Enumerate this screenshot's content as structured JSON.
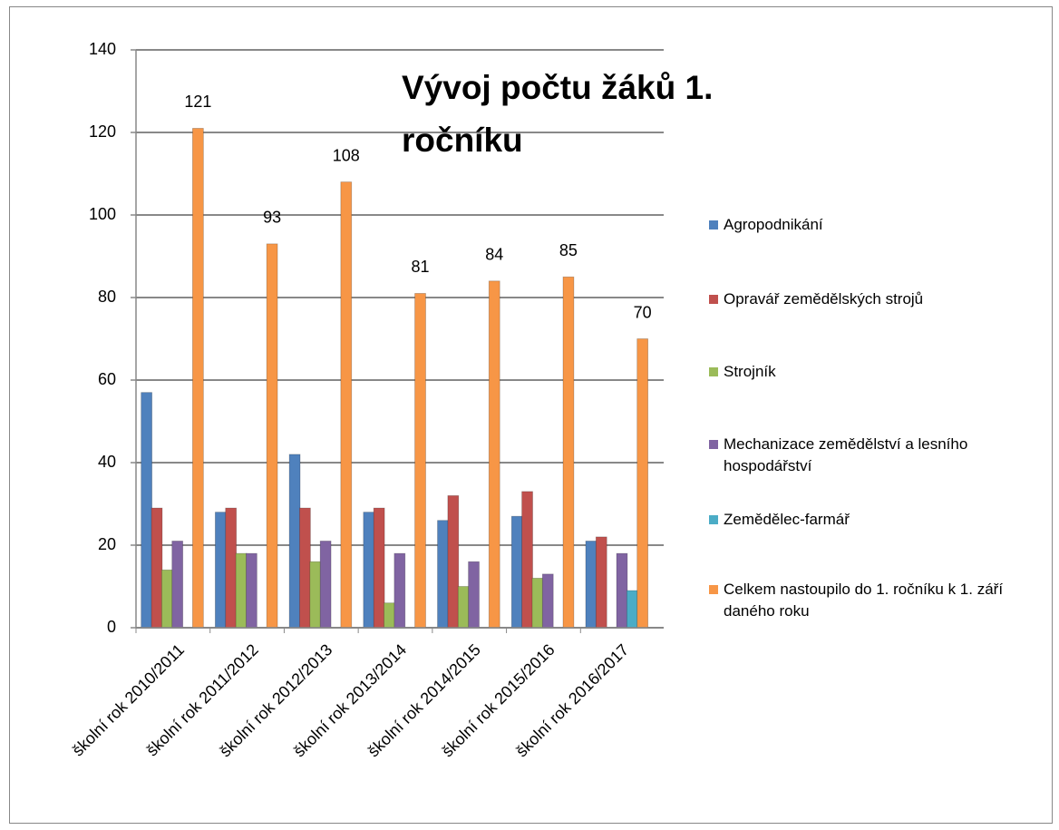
{
  "chart_data": {
    "type": "bar",
    "title": "Vývoj počtu žáků 1. ročníku",
    "categories": [
      "školní rok 2010/2011",
      "školní rok 2011/2012",
      "školní rok 2012/2013",
      "školní rok 2013/2014",
      "školní rok 2014/2015",
      "školní rok 2015/2016",
      "školní rok 2016/2017"
    ],
    "series": [
      {
        "name": "Agropodnikání",
        "color": "#4f81bd",
        "values": [
          57,
          28,
          42,
          28,
          26,
          27,
          21
        ]
      },
      {
        "name": "Opravář zemědělských strojů",
        "color": "#c0504d",
        "values": [
          29,
          29,
          29,
          29,
          32,
          33,
          22
        ]
      },
      {
        "name": "Strojník",
        "color": "#9bbb59",
        "values": [
          14,
          18,
          16,
          6,
          10,
          12,
          0
        ]
      },
      {
        "name": "Mechanizace zemědělství a lesního hospodářství",
        "color": "#8064a2",
        "values": [
          21,
          18,
          21,
          18,
          16,
          13,
          18
        ]
      },
      {
        "name": "Zemědělec-farmář",
        "color": "#4bacc6",
        "values": [
          0,
          0,
          0,
          0,
          0,
          0,
          9
        ]
      },
      {
        "name": "Celkem nastoupilo do 1. ročníku k 1. září daného roku",
        "color": "#f79646",
        "values": [
          121,
          93,
          108,
          81,
          84,
          85,
          70
        ],
        "data_labels": true
      }
    ],
    "ylim": [
      0,
      140
    ],
    "yticks": [
      0,
      20,
      40,
      60,
      80,
      100,
      120,
      140
    ],
    "grid": true,
    "legend": "right"
  }
}
